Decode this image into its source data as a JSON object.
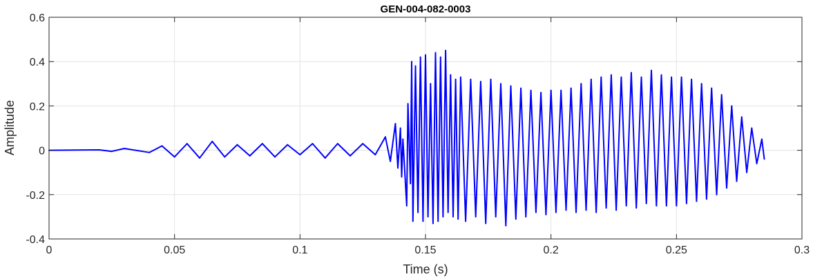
{
  "chart_data": {
    "type": "line",
    "title": "GEN-004-082-0003",
    "xlabel": "Time (s)",
    "ylabel": "Amplitude",
    "xlim": [
      0,
      0.3
    ],
    "ylim": [
      -0.4,
      0.6
    ],
    "xticks": [
      0,
      0.05,
      0.1,
      0.15,
      0.2,
      0.25,
      0.3
    ],
    "xtick_labels": [
      "0",
      "0.05",
      "0.1",
      "0.15",
      "0.2",
      "0.25",
      "0.3"
    ],
    "yticks": [
      -0.4,
      -0.2,
      0,
      0.2,
      0.4,
      0.6
    ],
    "ytick_labels": [
      "-0.4",
      "-0.2",
      "0",
      "0.2",
      "0.4",
      "0.6"
    ],
    "grid": true,
    "series": [
      {
        "color": "#0000ff",
        "x": [
          0,
          0.02,
          0.025,
          0.03,
          0.04,
          0.045,
          0.05,
          0.055,
          0.06,
          0.065,
          0.07,
          0.075,
          0.08,
          0.085,
          0.09,
          0.095,
          0.1,
          0.105,
          0.11,
          0.115,
          0.12,
          0.125,
          0.13,
          0.132,
          0.134,
          0.136,
          0.138,
          0.139,
          0.14,
          0.1405,
          0.141,
          0.1425,
          0.143,
          0.144,
          0.1445,
          0.145,
          0.146,
          0.147,
          0.148,
          0.149,
          0.15,
          0.151,
          0.152,
          0.153,
          0.154,
          0.155,
          0.156,
          0.157,
          0.158,
          0.159,
          0.16,
          0.161,
          0.162,
          0.163,
          0.164,
          0.166,
          0.168,
          0.17,
          0.172,
          0.174,
          0.176,
          0.178,
          0.18,
          0.182,
          0.184,
          0.186,
          0.188,
          0.19,
          0.192,
          0.194,
          0.196,
          0.198,
          0.2,
          0.202,
          0.204,
          0.206,
          0.208,
          0.21,
          0.212,
          0.214,
          0.216,
          0.218,
          0.22,
          0.222,
          0.224,
          0.226,
          0.228,
          0.23,
          0.232,
          0.234,
          0.236,
          0.238,
          0.24,
          0.242,
          0.244,
          0.246,
          0.248,
          0.25,
          0.252,
          0.254,
          0.256,
          0.258,
          0.26,
          0.262,
          0.264,
          0.266,
          0.268,
          0.27,
          0.272,
          0.274,
          0.276,
          0.278,
          0.28,
          0.282,
          0.284,
          0.285
        ],
        "y": [
          0,
          0.002,
          -0.005,
          0.008,
          -0.01,
          0.02,
          -0.03,
          0.03,
          -0.035,
          0.04,
          -0.03,
          0.025,
          -0.025,
          0.03,
          -0.03,
          0.025,
          -0.02,
          0.03,
          -0.035,
          0.03,
          -0.025,
          0.03,
          -0.02,
          0.02,
          0.06,
          -0.05,
          0.12,
          -0.08,
          0.1,
          -0.12,
          0.05,
          -0.25,
          0.21,
          -0.15,
          0.4,
          -0.32,
          0.38,
          -0.28,
          0.42,
          -0.32,
          0.43,
          -0.3,
          0.3,
          -0.33,
          0.44,
          -0.32,
          0.42,
          -0.3,
          0.45,
          -0.28,
          0.34,
          -0.3,
          0.32,
          -0.31,
          0.33,
          -0.32,
          0.32,
          -0.3,
          0.31,
          -0.33,
          0.32,
          -0.3,
          0.3,
          -0.34,
          0.29,
          -0.31,
          0.28,
          -0.3,
          0.27,
          -0.28,
          0.26,
          -0.29,
          0.27,
          -0.28,
          0.27,
          -0.27,
          0.28,
          -0.28,
          0.3,
          -0.27,
          0.32,
          -0.28,
          0.33,
          -0.26,
          0.34,
          -0.27,
          0.33,
          -0.25,
          0.35,
          -0.26,
          0.33,
          -0.24,
          0.36,
          -0.25,
          0.34,
          -0.25,
          0.33,
          -0.25,
          0.33,
          -0.24,
          0.32,
          -0.23,
          0.3,
          -0.22,
          0.28,
          -0.2,
          0.25,
          -0.17,
          0.2,
          -0.14,
          0.15,
          -0.1,
          0.1,
          -0.06,
          0.05,
          -0.04
        ]
      }
    ]
  }
}
